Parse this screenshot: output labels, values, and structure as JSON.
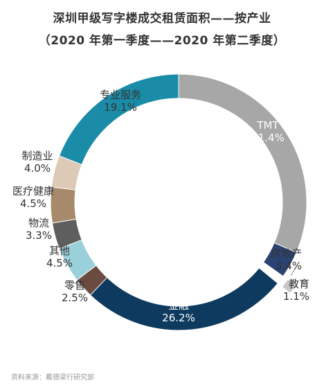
{
  "title_line1": "深圳甲级写字楼成交租赁面积——按产业",
  "title_line2": "（2020 年第一季度——2020 年第二季度）",
  "source": "资料来源：戴德梁行研究部",
  "chart_data": {
    "type": "pie",
    "title": "深圳甲级写字楼成交租赁面积——按产业（2020 年第一季度——2020 年第二季度）",
    "slices": [
      {
        "label": "TMT",
        "value": 31.4,
        "display": "31.4%",
        "color": "#a7a7a7"
      },
      {
        "label": "房地产",
        "value": 3.4,
        "display": "3.4%",
        "color": "#2b4372"
      },
      {
        "label": "教育",
        "value": 1.1,
        "display": "1.1%",
        "color": "#c8c8c8"
      },
      {
        "label": "金融",
        "value": 26.2,
        "display": "26.2%",
        "color": "#0f3a5f"
      },
      {
        "label": "零售",
        "value": 2.5,
        "display": "2.5%",
        "color": "#6b4a3f"
      },
      {
        "label": "其他",
        "value": 4.5,
        "display": "4.5%",
        "color": "#9ad0d9"
      },
      {
        "label": "物流",
        "value": 3.3,
        "display": "3.3%",
        "color": "#5e5e5e"
      },
      {
        "label": "医疗健康",
        "value": 4.5,
        "display": "4.5%",
        "color": "#a78a6b"
      },
      {
        "label": "制造业",
        "value": 4.0,
        "display": "4.0%",
        "color": "#dcc9b6"
      },
      {
        "label": "专业服务",
        "value": 19.1,
        "display": "19.1%",
        "color": "#1b8ca8"
      }
    ]
  }
}
